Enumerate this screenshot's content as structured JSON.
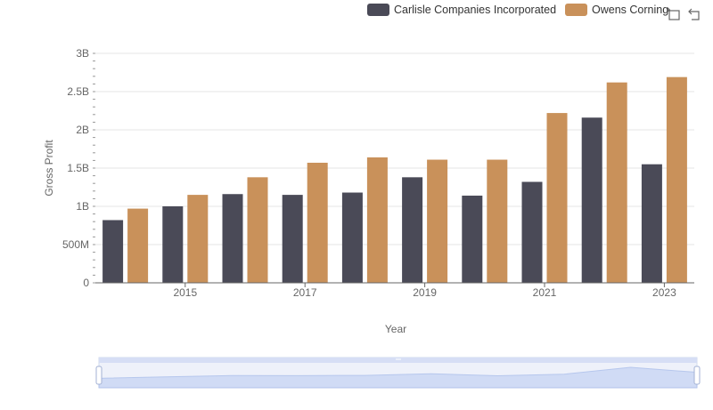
{
  "legend": {
    "series_a": "Carlisle Companies Incorporated",
    "series_b": "Owens Corning"
  },
  "colors": {
    "series_a": "#4a4a57",
    "series_b": "#c9915a"
  },
  "toolbox": {
    "zoom_icon": "zoom-select-icon",
    "reset_icon": "zoom-reset-icon"
  },
  "chart_data": {
    "type": "bar",
    "xlabel": "Year",
    "ylabel": "Gross Profit",
    "categories": [
      "2014",
      "2015",
      "2016",
      "2017",
      "2018",
      "2019",
      "2020",
      "2021",
      "2022",
      "2023"
    ],
    "x_tick_labels": [
      "2015",
      "2017",
      "2019",
      "2021",
      "2023"
    ],
    "y_tick_labels": [
      "0",
      "500M",
      "1B",
      "1.5B",
      "2B",
      "2.5B",
      "3B"
    ],
    "ylim": [
      0,
      3000000000
    ],
    "grid": true,
    "legend_position": "top-right",
    "series": [
      {
        "name": "Carlisle Companies Incorporated",
        "values": [
          820000000,
          1000000000,
          1160000000,
          1150000000,
          1180000000,
          1380000000,
          1140000000,
          1320000000,
          2160000000,
          1550000000
        ]
      },
      {
        "name": "Owens Corning",
        "values": [
          970000000,
          1150000000,
          1380000000,
          1570000000,
          1640000000,
          1610000000,
          1610000000,
          2220000000,
          2620000000,
          2690000000
        ]
      }
    ]
  }
}
